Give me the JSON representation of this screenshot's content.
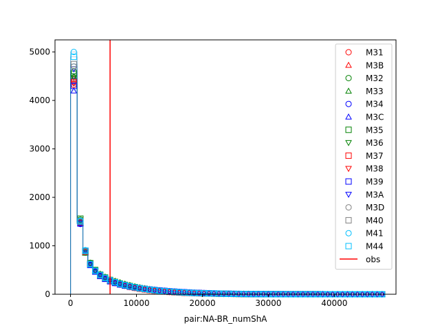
{
  "chart_data": {
    "type": "scatter",
    "xlabel": "pair:NA-BR_numShA",
    "ylabel": "",
    "xlim": [
      -2350,
      49350
    ],
    "ylim": [
      0,
      5250
    ],
    "xticks": [
      0,
      10000,
      20000,
      30000,
      40000
    ],
    "xtick_labels": [
      "0",
      "10000",
      "20000",
      "30000",
      "40000"
    ],
    "yticks": [
      0,
      1000,
      2000,
      3000,
      4000,
      5000
    ],
    "ytick_labels": [
      "0",
      "1000",
      "2000",
      "3000",
      "4000",
      "5000"
    ],
    "grid": false,
    "legend_position": "upper right",
    "x": [
      500,
      1500,
      2250,
      3000,
      3750,
      4500,
      5250,
      6000,
      6750,
      7500,
      8250,
      9000,
      9750,
      10500,
      11250,
      12000,
      12750,
      13500,
      14250,
      15000,
      15750,
      16500,
      17250,
      18000,
      18750,
      19500,
      20250,
      21000,
      21750,
      22500,
      23250,
      24000,
      24750,
      25500,
      26250,
      27000,
      27750,
      28500,
      29250,
      30000,
      30750,
      31500,
      32250,
      33000,
      33750,
      34500,
      35250,
      36000,
      36750,
      37500,
      38250,
      39000,
      39750,
      40500,
      41250,
      42000,
      42750,
      43500,
      44250,
      45000,
      45750,
      46500,
      47250
    ],
    "series": [
      {
        "name": "M31",
        "marker": "circle",
        "color": "#ff0000",
        "values": [
          4320,
          1470,
          880,
          620,
          480,
          390,
          320,
          270,
          230,
          200,
          175,
          150,
          130,
          112,
          98,
          85,
          74,
          64,
          55,
          48,
          42,
          36,
          31,
          27,
          23,
          20,
          17,
          15,
          13,
          11,
          9,
          8,
          7,
          6,
          5,
          4,
          4,
          3,
          3,
          2,
          2,
          2,
          2,
          1,
          1,
          1,
          1,
          1,
          1,
          1,
          1,
          0,
          0,
          0,
          0,
          0,
          0,
          0,
          0,
          0,
          0,
          0,
          0
        ]
      },
      {
        "name": "M3B",
        "marker": "triangle-up",
        "color": "#ff0000",
        "values": [
          4450,
          1500,
          870,
          640,
          490,
          400,
          340,
          290,
          250,
          215,
          185,
          160,
          138,
          120,
          104,
          90,
          78,
          68,
          59,
          51,
          44,
          38,
          33,
          29,
          25,
          21,
          18,
          16,
          14,
          12,
          10,
          8,
          7,
          6,
          5,
          4,
          4,
          3,
          3,
          2,
          2,
          2,
          2,
          1,
          1,
          1,
          1,
          1,
          1,
          1,
          1,
          0,
          0,
          0,
          0,
          0,
          0,
          0,
          0,
          0,
          0,
          0,
          0
        ]
      },
      {
        "name": "M32",
        "marker": "circle",
        "color": "#008000",
        "values": [
          4600,
          1540,
          860,
          650,
          500,
          410,
          350,
          300,
          260,
          230,
          200,
          175,
          152,
          132,
          114,
          99,
          86,
          75,
          65,
          56,
          48,
          42,
          36,
          31,
          27,
          23,
          20,
          17,
          15,
          13,
          11,
          9,
          8,
          7,
          6,
          5,
          4,
          4,
          3,
          3,
          2,
          2,
          2,
          1,
          1,
          1,
          1,
          1,
          1,
          1,
          1,
          0,
          0,
          0,
          0,
          0,
          0,
          0,
          0,
          0,
          0,
          0,
          0
        ]
      },
      {
        "name": "M33",
        "marker": "triangle-up",
        "color": "#008000",
        "values": [
          4500,
          1520,
          850,
          630,
          495,
          420,
          360,
          310,
          275,
          245,
          215,
          188,
          163,
          141,
          122,
          106,
          92,
          80,
          69,
          60,
          52,
          45,
          39,
          33,
          29,
          25,
          21,
          18,
          16,
          14,
          12,
          10,
          8,
          7,
          6,
          5,
          4,
          4,
          3,
          3,
          2,
          2,
          2,
          1,
          1,
          1,
          1,
          1,
          1,
          1,
          1,
          0,
          0,
          0,
          0,
          0,
          0,
          0,
          0,
          0,
          0,
          0,
          0
        ]
      },
      {
        "name": "M34",
        "marker": "circle",
        "color": "#0000ff",
        "values": [
          4400,
          1450,
          900,
          610,
          470,
          380,
          320,
          270,
          235,
          205,
          180,
          160,
          142,
          126,
          112,
          100,
          90,
          80,
          71,
          63,
          55,
          48,
          42,
          37,
          32,
          28,
          24,
          21,
          18,
          15,
          13,
          11,
          9,
          8,
          7,
          6,
          5,
          4,
          4,
          3,
          3,
          2,
          2,
          2,
          1,
          1,
          1,
          1,
          1,
          1,
          1,
          1,
          0,
          0,
          0,
          0,
          0,
          0,
          0,
          0,
          0,
          0,
          0
        ]
      },
      {
        "name": "M3C",
        "marker": "triangle-up",
        "color": "#0000ff",
        "values": [
          4200,
          1480,
          890,
          600,
          465,
          375,
          315,
          265,
          230,
          200,
          176,
          156,
          138,
          122,
          108,
          96,
          86,
          77,
          68,
          60,
          52,
          46,
          40,
          35,
          30,
          26,
          22,
          19,
          16,
          14,
          12,
          10,
          8,
          7,
          6,
          5,
          4,
          4,
          3,
          3,
          2,
          2,
          2,
          1,
          1,
          1,
          1,
          1,
          1,
          1,
          1,
          0,
          0,
          0,
          0,
          0,
          0,
          0,
          0,
          0,
          0,
          0,
          0
        ]
      },
      {
        "name": "M35",
        "marker": "square",
        "color": "#008000",
        "values": [
          4550,
          1560,
          870,
          640,
          500,
          405,
          345,
          295,
          255,
          222,
          194,
          170,
          148,
          128,
          111,
          96,
          83,
          72,
          62,
          54,
          46,
          40,
          34,
          29,
          25,
          22,
          19,
          16,
          14,
          12,
          10,
          8,
          7,
          6,
          5,
          4,
          4,
          3,
          3,
          2,
          2,
          2,
          1,
          1,
          1,
          1,
          1,
          1,
          1,
          1,
          0,
          0,
          0,
          0,
          0,
          0,
          0,
          0,
          0,
          0,
          0,
          0,
          0
        ]
      },
      {
        "name": "M36",
        "marker": "triangle-down",
        "color": "#008000",
        "values": [
          4480,
          1510,
          865,
          635,
          488,
          398,
          338,
          290,
          252,
          220,
          192,
          168,
          146,
          127,
          110,
          95,
          82,
          71,
          61,
          53,
          45,
          39,
          33,
          28,
          24,
          21,
          18,
          15,
          13,
          11,
          9,
          8,
          7,
          6,
          5,
          4,
          3,
          3,
          2,
          2,
          2,
          1,
          1,
          1,
          1,
          1,
          1,
          1,
          1,
          0,
          0,
          0,
          0,
          0,
          0,
          0,
          0,
          0,
          0,
          0,
          0,
          0,
          0
        ]
      },
      {
        "name": "M37",
        "marker": "square",
        "color": "#ff0000",
        "values": [
          4380,
          1490,
          875,
          625,
          482,
          392,
          328,
          278,
          238,
          205,
          178,
          154,
          133,
          115,
          100,
          87,
          75,
          65,
          56,
          48,
          41,
          35,
          30,
          26,
          22,
          19,
          16,
          14,
          12,
          10,
          8,
          7,
          6,
          5,
          4,
          4,
          3,
          3,
          2,
          2,
          2,
          1,
          1,
          1,
          1,
          1,
          1,
          1,
          1,
          0,
          0,
          0,
          0,
          0,
          0,
          0,
          0,
          0,
          0,
          0,
          0,
          0,
          0
        ]
      },
      {
        "name": "M38",
        "marker": "triangle-down",
        "color": "#ff0000",
        "values": [
          4350,
          1480,
          880,
          615,
          476,
          386,
          322,
          272,
          233,
          201,
          175,
          152,
          132,
          114,
          99,
          86,
          74,
          64,
          55,
          47,
          40,
          34,
          29,
          25,
          21,
          18,
          15,
          13,
          11,
          9,
          8,
          7,
          6,
          5,
          4,
          3,
          3,
          2,
          2,
          2,
          1,
          1,
          1,
          1,
          1,
          1,
          1,
          1,
          0,
          0,
          0,
          0,
          0,
          0,
          0,
          0,
          0,
          0,
          0,
          0,
          0,
          0,
          0
        ]
      },
      {
        "name": "M39",
        "marker": "square",
        "color": "#0000ff",
        "values": [
          4300,
          1460,
          895,
          605,
          468,
          378,
          318,
          268,
          232,
          202,
          178,
          158,
          140,
          124,
          110,
          98,
          88,
          78,
          69,
          61,
          54,
          47,
          41,
          36,
          31,
          27,
          23,
          20,
          17,
          15,
          13,
          11,
          9,
          8,
          7,
          6,
          5,
          4,
          3,
          3,
          2,
          2,
          2,
          1,
          1,
          1,
          1,
          1,
          1,
          1,
          1,
          0,
          0,
          0,
          0,
          0,
          0,
          0,
          0,
          0,
          0,
          0,
          0
        ]
      },
      {
        "name": "M3A",
        "marker": "triangle-down",
        "color": "#0000ff",
        "values": [
          4650,
          1455,
          905,
          608,
          472,
          382,
          321,
          272,
          236,
          206,
          181,
          160,
          141,
          125,
          111,
          99,
          89,
          79,
          70,
          62,
          54,
          47,
          41,
          36,
          31,
          27,
          23,
          20,
          17,
          15,
          13,
          11,
          9,
          8,
          7,
          6,
          5,
          4,
          4,
          3,
          3,
          2,
          2,
          2,
          1,
          1,
          1,
          1,
          1,
          1,
          1,
          1,
          0,
          0,
          0,
          0,
          0,
          0,
          0,
          0,
          0,
          0,
          0
        ]
      },
      {
        "name": "M3D",
        "marker": "circle",
        "color": "#808080",
        "values": [
          4700,
          1500,
          880,
          620,
          480,
          392,
          330,
          282,
          244,
          212,
          185,
          161,
          140,
          122,
          106,
          92,
          80,
          70,
          61,
          53,
          46,
          40,
          34,
          29,
          25,
          22,
          19,
          16,
          14,
          12,
          10,
          8,
          7,
          6,
          5,
          4,
          4,
          3,
          3,
          2,
          2,
          2,
          1,
          1,
          1,
          1,
          1,
          1,
          1,
          1,
          0,
          0,
          0,
          0,
          0,
          0,
          0,
          0,
          0,
          0,
          0,
          0,
          0
        ]
      },
      {
        "name": "M40",
        "marker": "square",
        "color": "#808080",
        "values": [
          4750,
          1510,
          885,
          625,
          484,
          395,
          333,
          285,
          246,
          214,
          187,
          163,
          142,
          124,
          108,
          94,
          82,
          71,
          62,
          54,
          47,
          41,
          35,
          30,
          26,
          22,
          19,
          16,
          14,
          12,
          10,
          8,
          7,
          6,
          5,
          4,
          4,
          3,
          3,
          2,
          2,
          2,
          1,
          1,
          1,
          1,
          1,
          1,
          1,
          1,
          0,
          0,
          0,
          0,
          0,
          0,
          0,
          0,
          0,
          0,
          0,
          0,
          0
        ]
      },
      {
        "name": "M41",
        "marker": "circle",
        "color": "#00bfff",
        "values": [
          5000,
          1520,
          910,
          630,
          490,
          400,
          340,
          290,
          250,
          217,
          189,
          165,
          144,
          125,
          109,
          95,
          83,
          72,
          63,
          55,
          48,
          42,
          36,
          31,
          27,
          23,
          20,
          17,
          15,
          13,
          11,
          9,
          8,
          7,
          6,
          5,
          4,
          3,
          3,
          2,
          2,
          2,
          1,
          1,
          1,
          1,
          1,
          1,
          1,
          1,
          1,
          0,
          0,
          0,
          0,
          0,
          0,
          0,
          0,
          0,
          0,
          0,
          0
        ]
      },
      {
        "name": "M44",
        "marker": "square",
        "color": "#00bfff",
        "values": [
          4900,
          1500,
          900,
          620,
          485,
          398,
          336,
          288,
          248,
          216,
          188,
          164,
          143,
          124,
          108,
          94,
          82,
          71,
          62,
          54,
          47,
          41,
          35,
          30,
          26,
          22,
          19,
          16,
          14,
          12,
          10,
          8,
          7,
          6,
          5,
          4,
          4,
          3,
          3,
          2,
          2,
          2,
          1,
          1,
          1,
          1,
          1,
          1,
          1,
          1,
          0,
          0,
          0,
          0,
          0,
          0,
          0,
          0,
          0,
          0,
          0,
          0,
          0
        ]
      }
    ],
    "reference_line": {
      "name": "obs",
      "x": 6000,
      "color": "#ff0000"
    },
    "step_line_color": "#1f77b4"
  }
}
